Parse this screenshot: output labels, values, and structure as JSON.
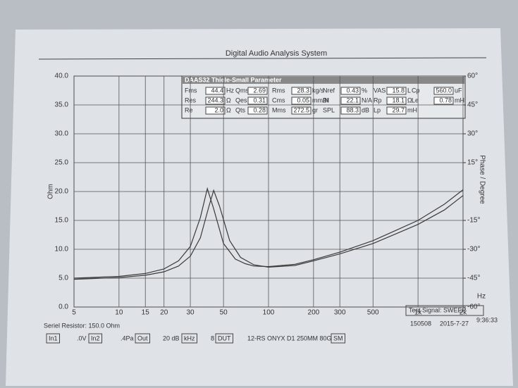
{
  "chart_data": {
    "type": "line",
    "title": "Digital Audio Analysis System",
    "ylabel": "Ohm",
    "y2label": "Phase / Degree",
    "xunit": "Hz",
    "xscale": "log",
    "grid": true,
    "xlim": [
      5,
      2000
    ],
    "xticks": [
      5,
      10,
      15,
      20,
      30,
      50,
      100,
      200,
      300,
      500,
      {
        "value": 1000,
        "label": "1k"
      },
      {
        "value": 2000,
        "label": "2k"
      }
    ],
    "ylim": [
      0,
      40
    ],
    "yticks": [
      {
        "value": 0,
        "label": "0.0"
      },
      {
        "value": 5,
        "label": "5.0"
      },
      {
        "value": 10,
        "label": "10.0"
      },
      {
        "value": 15,
        "label": "15.0"
      },
      {
        "value": 20,
        "label": "20.0"
      },
      {
        "value": 25,
        "label": "25.0"
      },
      {
        "value": 30,
        "label": "30.0"
      },
      {
        "value": 35,
        "label": "35.0"
      },
      {
        "value": 40,
        "label": "40.0"
      }
    ],
    "y2lim": [
      -60,
      60
    ],
    "y2ticks": [
      {
        "value": 60,
        "label": "60°"
      },
      {
        "value": 45,
        "label": "45°"
      },
      {
        "value": 30,
        "label": "30°"
      },
      {
        "value": 15,
        "label": "15°"
      },
      {
        "value": -15,
        "label": "-15°"
      },
      {
        "value": -30,
        "label": "-30°"
      },
      {
        "value": -45,
        "label": "-45°"
      },
      {
        "value": -60,
        "label": "-60°"
      }
    ],
    "series": [
      {
        "color": "#3a3a3a",
        "x": [
          5,
          10,
          15,
          20,
          25,
          30,
          35,
          39,
          43,
          50,
          60,
          70,
          80,
          100,
          150,
          200,
          300,
          500,
          700,
          1000,
          1500,
          2000
        ],
        "values": [
          5.0,
          5.3,
          5.8,
          6.6,
          8.0,
          10.5,
          15.5,
          20.5,
          17,
          11,
          8.3,
          7.5,
          7.1,
          7.0,
          7.4,
          8.2,
          9.5,
          11.5,
          13.2,
          15.0,
          17.8,
          20.3
        ]
      },
      {
        "color": "#3a3a3a",
        "x": [
          5,
          10,
          15,
          20,
          25,
          30,
          35,
          40,
          43,
          47,
          55,
          65,
          80,
          100,
          150,
          200,
          300,
          500,
          700,
          1000,
          1500,
          2000
        ],
        "values": [
          4.8,
          5.1,
          5.5,
          6.1,
          7.1,
          8.8,
          12,
          17.5,
          20.2,
          17.5,
          11.5,
          8.6,
          7.3,
          6.9,
          7.2,
          8.0,
          9.2,
          11.0,
          12.6,
          14.3,
          16.8,
          19.3
        ]
      }
    ]
  },
  "parameter_panel": {
    "title": "DAAS32 Thiele-Small Parameter",
    "rows": [
      [
        [
          "Fms",
          "44.4",
          "Hz"
        ],
        [
          "Qms",
          "2.69",
          ""
        ],
        [
          "Rms",
          "28.3",
          "kg/s"
        ],
        [
          "Nref",
          "0.43",
          "%"
        ],
        [
          "VAS",
          "15.8",
          "L"
        ],
        [
          "Cp",
          "560.0",
          "uF"
        ]
      ],
      [
        [
          "Res",
          "244.3",
          "Ω"
        ],
        [
          "Qes",
          "0.31",
          ""
        ],
        [
          "Cms",
          "0.05",
          "mm/N"
        ],
        [
          "Bl",
          "22.1",
          "N/A"
        ],
        [
          "Rp",
          "18.1",
          "Ω"
        ],
        [
          "Le",
          "0.78",
          "mH"
        ]
      ],
      [
        [
          "Re",
          "2.0",
          "Ω"
        ],
        [
          "Qts",
          "0.28",
          ""
        ],
        [
          "Mms",
          "272.5",
          "gr"
        ],
        [
          "SPL",
          "88.3",
          "dB"
        ],
        [
          "Lp",
          "29.7",
          "mH"
        ]
      ]
    ]
  },
  "footer": {
    "test_signal": "Test Signal: SWEEP",
    "code": "150508",
    "date": "2015-7-27",
    "time": "9:36:33",
    "resistor": "Seriel Resistor: 150.0 Ohm",
    "controls": [
      "In1",
      ".0V",
      "In2",
      ".4Pa",
      "Out",
      "20 dB",
      "kHz",
      "8",
      "DUT",
      "12-RS ONYX D1 250MM 80G",
      "SM"
    ]
  }
}
